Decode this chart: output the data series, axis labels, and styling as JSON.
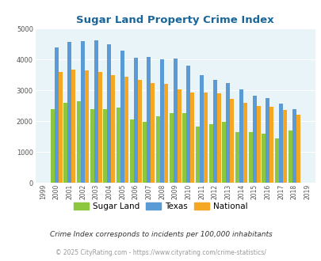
{
  "title": "Sugar Land Property Crime Index",
  "years": [
    1999,
    2000,
    2001,
    2002,
    2003,
    2004,
    2005,
    2006,
    2007,
    2008,
    2009,
    2010,
    2011,
    2012,
    2013,
    2014,
    2015,
    2016,
    2017,
    2018,
    2019
  ],
  "sugar_land": [
    null,
    2400,
    2600,
    2650,
    2400,
    2380,
    2450,
    2050,
    1980,
    2150,
    2270,
    2270,
    1830,
    1900,
    1980,
    1640,
    1640,
    1600,
    1450,
    1700,
    null
  ],
  "texas": [
    null,
    4400,
    4580,
    4600,
    4620,
    4500,
    4300,
    4070,
    4090,
    4000,
    4030,
    3800,
    3480,
    3350,
    3230,
    3040,
    2820,
    2760,
    2580,
    2390,
    null
  ],
  "national": [
    null,
    3600,
    3670,
    3640,
    3600,
    3500,
    3440,
    3340,
    3240,
    3200,
    3040,
    2940,
    2940,
    2890,
    2730,
    2600,
    2490,
    2460,
    2360,
    2200,
    null
  ],
  "sugar_land_color": "#8dc63f",
  "texas_color": "#5b9bd5",
  "national_color": "#f5a623",
  "bg_color": "#e8f4f8",
  "title_color": "#1a6699",
  "legend_labels": [
    "Sugar Land",
    "Texas",
    "National"
  ],
  "footnote1": "Crime Index corresponds to incidents per 100,000 inhabitants",
  "footnote2": "© 2025 CityRating.com - https://www.cityrating.com/crime-statistics/",
  "ylim": [
    0,
    5000
  ],
  "yticks": [
    0,
    1000,
    2000,
    3000,
    4000,
    5000
  ]
}
